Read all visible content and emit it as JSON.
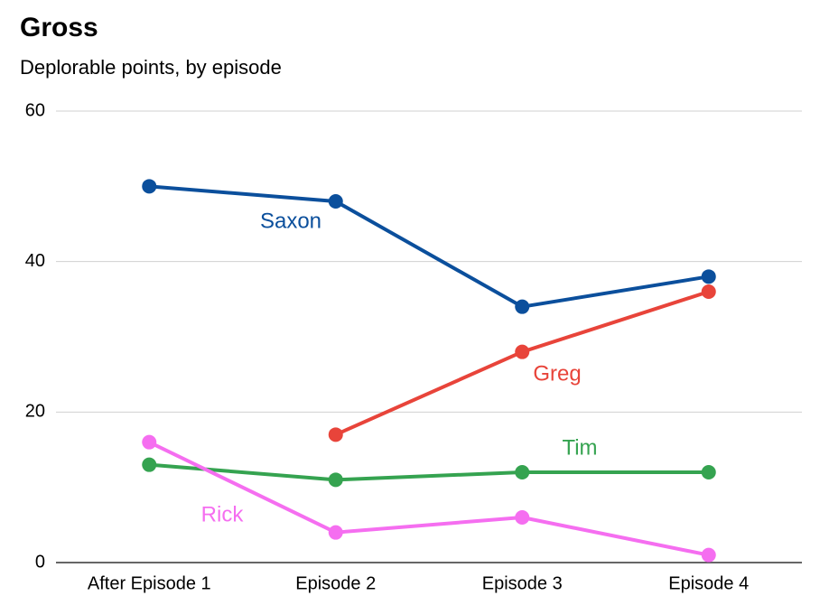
{
  "chart_data": {
    "type": "line",
    "title": "Gross",
    "subtitle": "Deplorable points, by episode",
    "categories": [
      "After Episode 1",
      "Episode 2",
      "Episode 3",
      "Episode 4"
    ],
    "series": [
      {
        "name": "Saxon",
        "color": "#0b4f9c",
        "values": [
          50,
          48,
          34,
          38
        ]
      },
      {
        "name": "Greg",
        "color": "#e8443a",
        "values": [
          null,
          17,
          28,
          36
        ]
      },
      {
        "name": "Tim",
        "color": "#35a350",
        "values": [
          13,
          11,
          12,
          12
        ]
      },
      {
        "name": "Rick",
        "color": "#f56ef0",
        "values": [
          16,
          4,
          6,
          1
        ]
      }
    ],
    "ylim": [
      0,
      60
    ],
    "yticks": [
      0,
      20,
      40,
      60
    ],
    "grid": true
  }
}
